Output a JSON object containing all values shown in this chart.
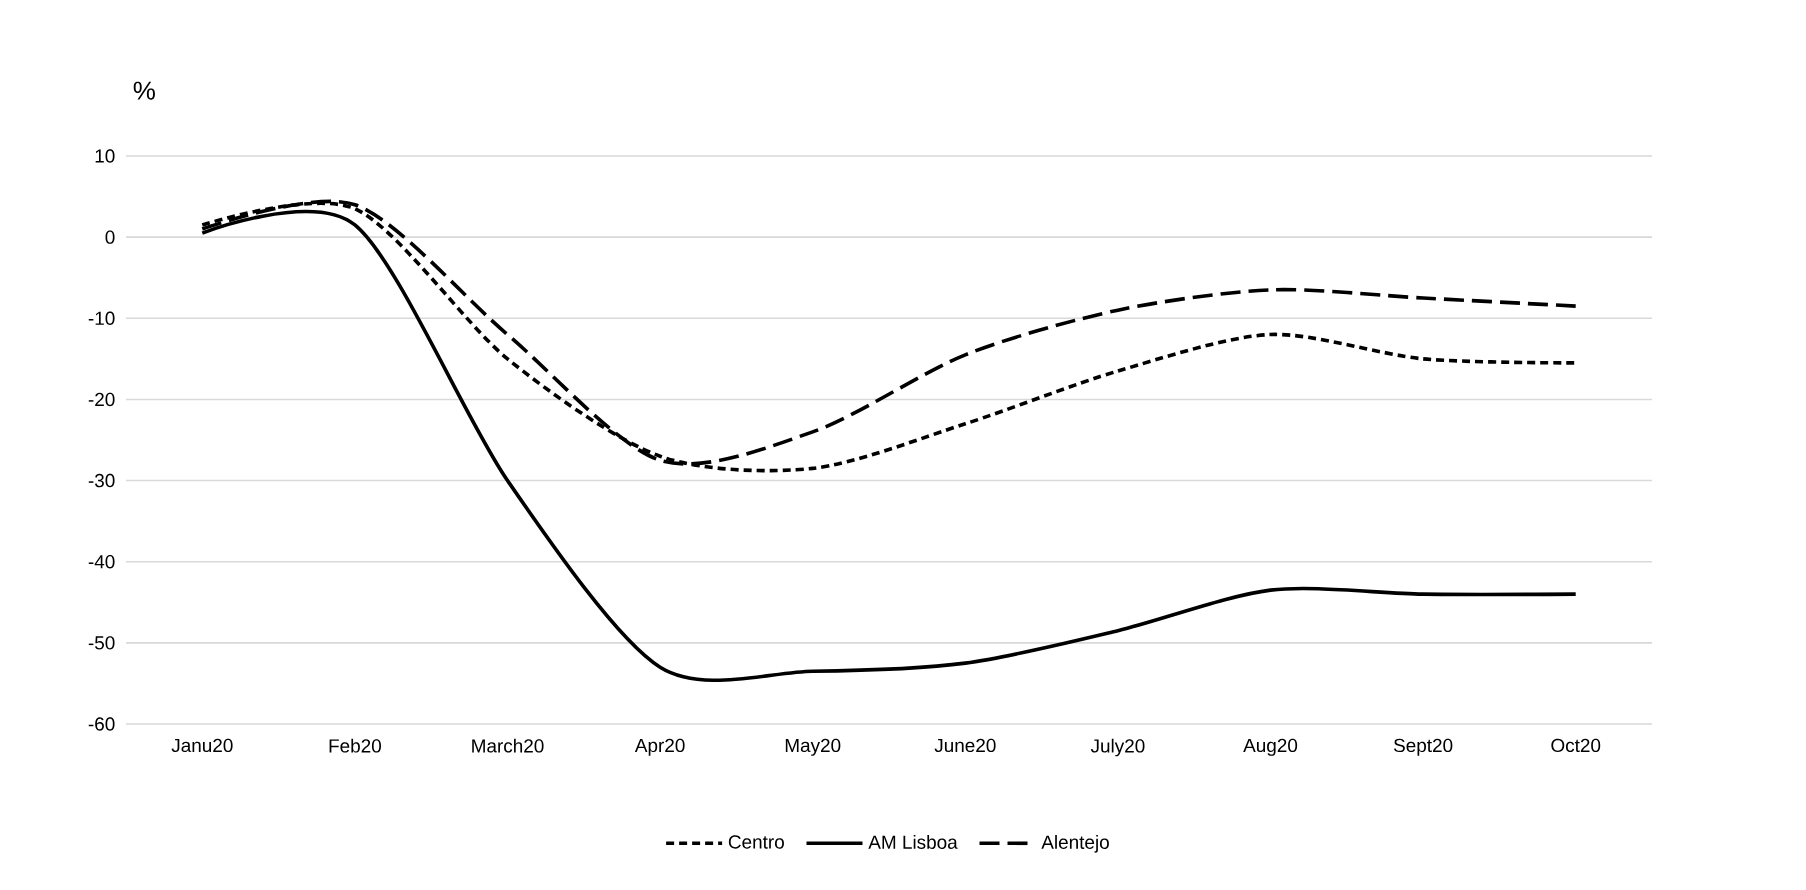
{
  "chart_data": {
    "type": "line",
    "ylabel": "%",
    "categories": [
      "Janu20",
      "Feb20",
      "March20",
      "Apr20",
      "May20",
      "June20",
      "July20",
      "Aug20",
      "Sept20",
      "Oct20"
    ],
    "series": [
      {
        "name": "Centro",
        "color": "#000000",
        "line_style": "dotted",
        "values": [
          1.5,
          3.5,
          -15,
          -27,
          -28.5,
          -23,
          -16.5,
          -12,
          -15,
          -15.5
        ]
      },
      {
        "name": "AM Lisboa",
        "color": "#000000",
        "line_style": "solid",
        "values": [
          0.5,
          1.5,
          -30,
          -53,
          -53.5,
          -52.5,
          -48.5,
          -43.5,
          -44,
          -44
        ]
      },
      {
        "name": "Alentejo",
        "color": "#000000",
        "line_style": "dashed",
        "values": [
          1,
          4,
          -12,
          -27.5,
          -24,
          -14.5,
          -9,
          -6.5,
          -7.5,
          -8.5
        ]
      }
    ],
    "ylim": [
      -60,
      10
    ],
    "yticks": [
      -60,
      -50,
      -40,
      -30,
      -20,
      -10,
      0,
      10
    ],
    "grid": "y",
    "legend": "bottom"
  }
}
